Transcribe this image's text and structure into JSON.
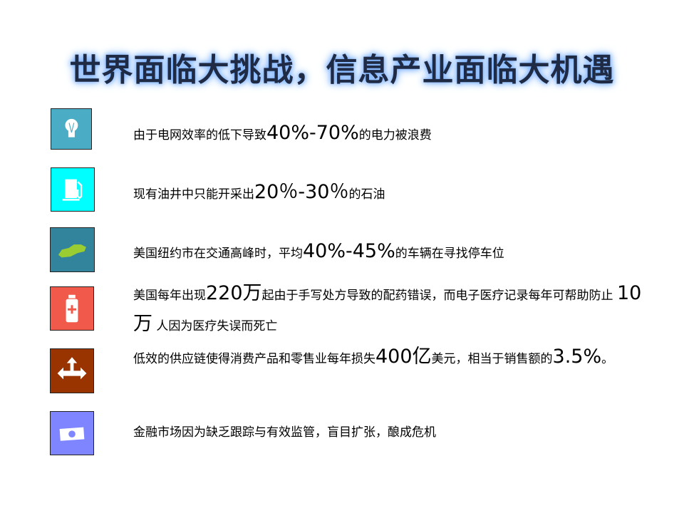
{
  "title": "世界面临大挑战，信息产业面临大机遇",
  "items": [
    {
      "icon": "lightbulb-icon",
      "color": "#4BACC6",
      "parts": [
        "由于电网效率的低下导致",
        "40%-70%",
        "的电力被浪费"
      ]
    },
    {
      "icon": "fuel-pump-icon",
      "color": "#00FFFF",
      "parts": [
        "现有油井中只能开采出",
        "20％-30％",
        "的石油"
      ]
    },
    {
      "icon": "car-icon",
      "color": "#31849B",
      "parts": [
        "美国纽约市在交通高峰时，平均",
        "40%-45%",
        "的车辆在寻找停车位"
      ]
    },
    {
      "icon": "medicine-bottle-icon",
      "color": "#F15A4A",
      "parts": [
        "美国每年出现",
        "220万",
        "起由于手写处方导致的配药错误，而电子医疗记录每年可帮助防止 ",
        "10万",
        " 人因为医疗失误而死亡"
      ]
    },
    {
      "icon": "split-arrows-icon",
      "color": "#993300",
      "parts": [
        "低效的供应链使得消费产品和零售业每年损失",
        "400亿",
        "美元，相当于销售额的",
        "3.5%",
        "。"
      ]
    },
    {
      "icon": "money-icon",
      "color": "#7F85FF",
      "parts": [
        "金融市场因为缺乏跟踪与有效监管，盲目扩张，酿成危机"
      ]
    }
  ]
}
